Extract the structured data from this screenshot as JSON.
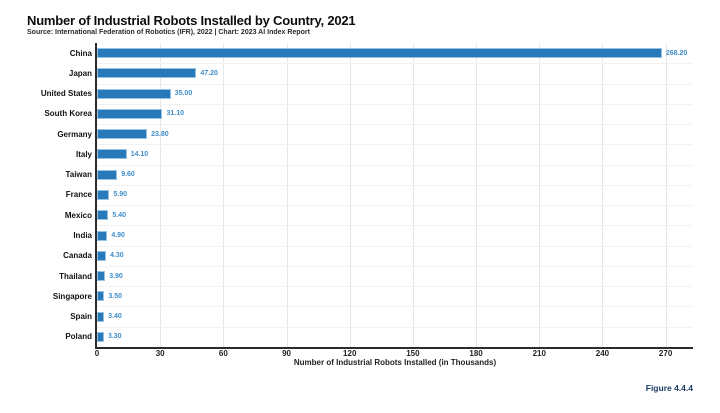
{
  "title": "Number of Industrial Robots Installed by Country, 2021",
  "subtitle": "Source: International Federation of Robotics (IFR), 2022 | Chart: 2023 AI Index Report",
  "figure_label": "Figure 4.4.4",
  "colors": {
    "bar_fill": "#2879b9",
    "bar_edge": "#97c2e2",
    "value_label": "#3e8ecb",
    "vertical_grid": "#e6e6e6",
    "horizontal_grid": "#f2f2f2",
    "axis_spine": "#2b2b2b",
    "tick_text": "#1f1f1f",
    "title_text": "#0d0d0d",
    "figure_label_text": "#1d3e66",
    "background": "#ffffff"
  },
  "chart_data": {
    "type": "bar",
    "orientation": "horizontal",
    "title": "Number of Industrial Robots Installed by Country, 2021",
    "subtitle": "Source: International Federation of Robotics (IFR), 2022 | Chart: 2023 AI Index Report",
    "categories": [
      "China",
      "Japan",
      "United States",
      "South Korea",
      "Germany",
      "Italy",
      "Taiwan",
      "France",
      "Mexico",
      "India",
      "Canada",
      "Thailand",
      "Singapore",
      "Spain",
      "Poland"
    ],
    "values": [
      268.2,
      47.2,
      35.0,
      31.1,
      23.8,
      14.1,
      9.6,
      5.9,
      5.4,
      4.9,
      4.3,
      3.9,
      3.5,
      3.4,
      3.3
    ],
    "value_labels": [
      "268.20",
      "47.20",
      "35.00",
      "31.10",
      "23.80",
      "14.10",
      "9.60",
      "5.90",
      "5.40",
      "4.90",
      "4.30",
      "3.90",
      "3.50",
      "3.40",
      "3.30"
    ],
    "xlabel": "Number of Industrial Robots Installed (in Thousands)",
    "ylabel": "",
    "x_ticks": [
      0,
      30,
      60,
      90,
      120,
      150,
      180,
      210,
      240,
      270
    ],
    "xlim": [
      0,
      283
    ],
    "grid": true,
    "legend": "none",
    "bar_value_labels_shown": true
  }
}
